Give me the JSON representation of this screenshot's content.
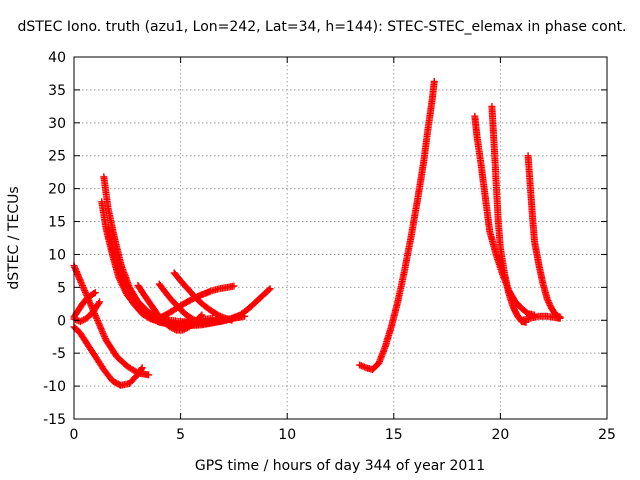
{
  "chart_data": {
    "type": "scatter",
    "title": "dSTEC Iono. truth (azu1, Lon=242, Lat=34, h=144): STEC-STEC_elemax in phase cont.",
    "xlabel": "GPS time / hours of day 344 of year 2011",
    "ylabel": "dSTEC  / TECUs",
    "xlim": [
      0,
      25
    ],
    "ylim": [
      -15,
      40
    ],
    "xticks": [
      0,
      5,
      10,
      15,
      20,
      25
    ],
    "yticks": [
      -15,
      -10,
      -5,
      0,
      5,
      10,
      15,
      20,
      25,
      30,
      35,
      40
    ],
    "grid": true,
    "legend": "none",
    "marker": "plus",
    "color": "#ff0000",
    "series": [
      {
        "x": [
          0.0,
          0.3,
          0.7,
          1.1,
          1.5,
          2.0,
          2.5,
          3.0,
          3.5
        ],
        "y": [
          8.3,
          6.0,
          3.0,
          0.0,
          -3.0,
          -5.5,
          -7.0,
          -8.0,
          -8.3
        ]
      },
      {
        "x": [
          0.0,
          0.3,
          0.6,
          1.0,
          1.4,
          1.8,
          2.2,
          2.6,
          3.0,
          3.2
        ],
        "y": [
          -1.0,
          -2.0,
          -3.5,
          -5.5,
          -7.5,
          -9.2,
          -9.9,
          -9.6,
          -8.2,
          -7.2
        ]
      },
      {
        "x": [
          0.0,
          0.2,
          0.4,
          0.6,
          0.8,
          1.0
        ],
        "y": [
          0.5,
          1.5,
          2.5,
          3.3,
          3.8,
          4.2
        ]
      },
      {
        "x": [
          0.0,
          0.3,
          0.6,
          0.9,
          1.2
        ],
        "y": [
          0.2,
          -0.2,
          0.3,
          1.3,
          2.8
        ]
      },
      {
        "x": [
          1.3,
          1.5,
          1.8,
          2.1,
          2.5,
          3.0,
          3.5,
          4.0,
          4.5,
          5.0,
          5.5,
          6.0,
          6.5
        ],
        "y": [
          18.0,
          14.0,
          10.0,
          6.5,
          3.8,
          1.8,
          0.5,
          -0.3,
          -0.6,
          -0.5,
          -0.2,
          0.1,
          0.3
        ]
      },
      {
        "x": [
          1.4,
          1.6,
          1.9,
          2.2,
          2.6,
          3.0,
          3.5,
          4.0,
          4.5,
          5.0,
          5.5,
          6.0
        ],
        "y": [
          21.8,
          17.0,
          12.5,
          8.5,
          5.0,
          2.8,
          1.2,
          0.3,
          0.0,
          -0.2,
          -0.3,
          -0.4
        ]
      },
      {
        "x": [
          1.6,
          1.8,
          2.1,
          2.4,
          2.8,
          3.2,
          3.6,
          4.0,
          4.4,
          4.8,
          5.2,
          5.6,
          6.0,
          6.5,
          7.0
        ],
        "y": [
          14.0,
          11.0,
          7.5,
          4.8,
          2.5,
          1.0,
          0.2,
          -0.2,
          -0.5,
          -0.7,
          -0.8,
          -0.7,
          -0.5,
          -0.3,
          0.0
        ]
      },
      {
        "x": [
          1.8,
          2.0,
          2.3,
          2.7,
          3.1,
          3.5,
          4.0,
          4.5,
          5.0,
          5.5,
          6.0,
          6.5,
          7.0,
          7.5,
          8.0
        ],
        "y": [
          10.8,
          9.0,
          6.5,
          4.0,
          2.2,
          1.0,
          0.1,
          -0.5,
          -0.8,
          -0.8,
          -0.7,
          -0.4,
          -0.1,
          0.3,
          0.6
        ]
      },
      {
        "x": [
          3.0,
          3.3,
          3.6,
          3.9,
          4.2,
          4.5,
          4.8,
          5.1,
          5.4,
          5.7,
          6.0
        ],
        "y": [
          5.3,
          3.8,
          2.4,
          1.0,
          -0.2,
          -1.0,
          -1.5,
          -1.5,
          -1.0,
          -0.2,
          0.8
        ]
      },
      {
        "x": [
          4.0,
          4.3,
          4.6,
          4.9,
          5.2,
          5.5,
          5.8,
          6.1,
          6.5,
          7.0
        ],
        "y": [
          5.5,
          4.2,
          3.0,
          2.0,
          1.0,
          0.3,
          -0.2,
          -0.3,
          -0.1,
          0.2
        ]
      },
      {
        "x": [
          4.7,
          5.0,
          5.3,
          5.6,
          5.9,
          6.2,
          6.5,
          6.8,
          7.1,
          7.4
        ],
        "y": [
          7.2,
          6.0,
          4.9,
          3.8,
          2.8,
          2.0,
          1.3,
          0.7,
          0.3,
          0.0
        ]
      },
      {
        "x": [
          4.0,
          4.4,
          4.8,
          5.2,
          5.6,
          6.0,
          6.4,
          6.8,
          7.2,
          7.5
        ],
        "y": [
          0.3,
          1.0,
          1.8,
          2.6,
          3.3,
          3.9,
          4.4,
          4.8,
          5.0,
          5.2
        ]
      },
      {
        "x": [
          6.0,
          6.5,
          7.0,
          7.4,
          7.8,
          8.2,
          8.6,
          9.0,
          9.2
        ],
        "y": [
          -0.5,
          -0.2,
          0.0,
          0.3,
          0.8,
          1.8,
          3.0,
          4.2,
          4.8
        ]
      },
      {
        "x": [
          13.4,
          13.7,
          14.0,
          14.3,
          14.6,
          14.9,
          15.2,
          15.5,
          15.8,
          16.1,
          16.4,
          16.6,
          16.8,
          16.9
        ],
        "y": [
          -6.8,
          -7.2,
          -7.5,
          -6.5,
          -4.0,
          -0.8,
          3.0,
          7.5,
          12.5,
          18.0,
          24.0,
          29.0,
          33.5,
          36.3
        ]
      },
      {
        "x": [
          18.8,
          18.9,
          19.1,
          19.3,
          19.5,
          19.8,
          20.1,
          20.4,
          20.7,
          21.0,
          21.3,
          21.6
        ],
        "y": [
          31.0,
          28.0,
          23.5,
          18.5,
          13.5,
          10.0,
          7.0,
          4.5,
          2.8,
          1.8,
          1.0,
          0.8
        ]
      },
      {
        "x": [
          19.6,
          19.7,
          19.8,
          19.9,
          20.0,
          20.2,
          20.4,
          20.6,
          20.8,
          21.0,
          21.2
        ],
        "y": [
          32.5,
          27.0,
          21.0,
          15.0,
          11.0,
          7.0,
          4.0,
          2.0,
          0.7,
          -0.2,
          -0.3
        ]
      },
      {
        "x": [
          21.3,
          21.4,
          21.5,
          21.6,
          21.8,
          22.0,
          22.2,
          22.4,
          22.6,
          22.8
        ],
        "y": [
          25.0,
          20.5,
          16.0,
          12.0,
          8.5,
          5.5,
          3.2,
          1.8,
          0.8,
          0.5
        ]
      },
      {
        "x": [
          21.0,
          21.4,
          21.8,
          22.2,
          22.6,
          22.8
        ],
        "y": [
          0.0,
          0.3,
          0.6,
          0.6,
          0.4,
          0.3
        ]
      }
    ]
  }
}
